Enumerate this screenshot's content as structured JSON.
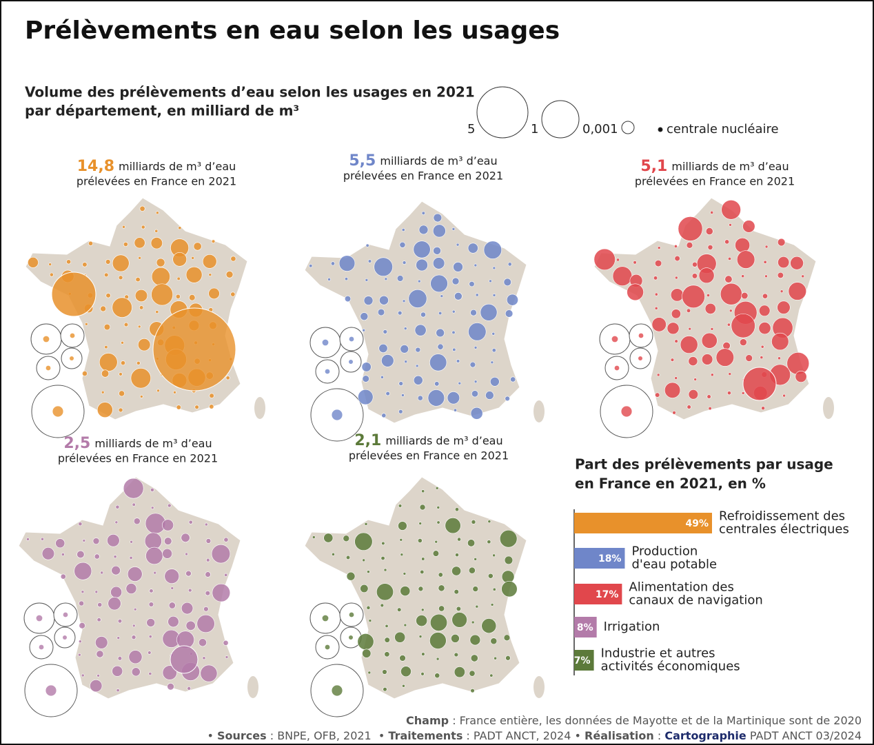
{
  "title": "Prélèvements en eau selon les usages",
  "subtitle": [
    "Volume des prélèvements d’eau selon les usages en 2021",
    "par département, en milliard de m³"
  ],
  "size_legend": {
    "labels": [
      "5",
      "1",
      "0,001"
    ],
    "nuclear": "centrale nucléaire"
  },
  "maps": [
    {
      "amount": "14,8",
      "unit": "milliards de m³ d’eau",
      "line2": "prélevées en France en 2021",
      "color": "#e8912b"
    },
    {
      "amount": "5,5",
      "unit": "milliards de m³ d’eau",
      "line2": "prélevées en France en 2021",
      "color": "#6f86c9"
    },
    {
      "amount": "5,1",
      "unit": "milliards de m³ d’eau",
      "line2": "prélevées en France en 2021",
      "color": "#e1474c"
    },
    {
      "amount": "2,5",
      "unit": "milliards de m³ d’eau",
      "line2": "prélevées en France en 2021",
      "color": "#b37ba9"
    },
    {
      "amount": "2,1",
      "unit": "milliards de m³ d’eau",
      "line2": "prélevées en France en 2021",
      "color": "#5c7a3a"
    }
  ],
  "chart_data": {
    "type": "bar",
    "title": [
      "Part des prélèvements par usage",
      "en France en 2021, en %"
    ],
    "categories": [
      [
        "Refroidissement des",
        "centrales électriques"
      ],
      [
        "Production",
        "d'eau potable"
      ],
      [
        "Alimentation des",
        "canaux de navigation"
      ],
      [
        "Irrigation"
      ],
      [
        "Industrie et autres",
        "activités économiques"
      ]
    ],
    "values": [
      49,
      18,
      17,
      8,
      7
    ],
    "value_labels": [
      "49%",
      "18%",
      "17%",
      "8%",
      "7%"
    ],
    "colors": [
      "#e8912b",
      "#6f86c9",
      "#e1474c",
      "#b37ba9",
      "#5c7a3a"
    ],
    "xlim": [
      0,
      49
    ]
  },
  "footer": [
    [
      {
        "b": "Champ"
      },
      {
        "t": " : France entière, les données de Mayotte et de la Martinique sont de 2020"
      }
    ],
    [
      {
        "t": "• "
      },
      {
        "b": "Sources"
      },
      {
        "t": " : BNPE, OFB, 2021  • "
      },
      {
        "b": "Traitements"
      },
      {
        "t": " : PADT ANCT, 2024 • "
      },
      {
        "b": "Réalisation"
      },
      {
        "t": " : "
      },
      {
        "n": "Cartographie"
      },
      {
        "t": " PADT ANCT 03/2024"
      }
    ]
  ]
}
